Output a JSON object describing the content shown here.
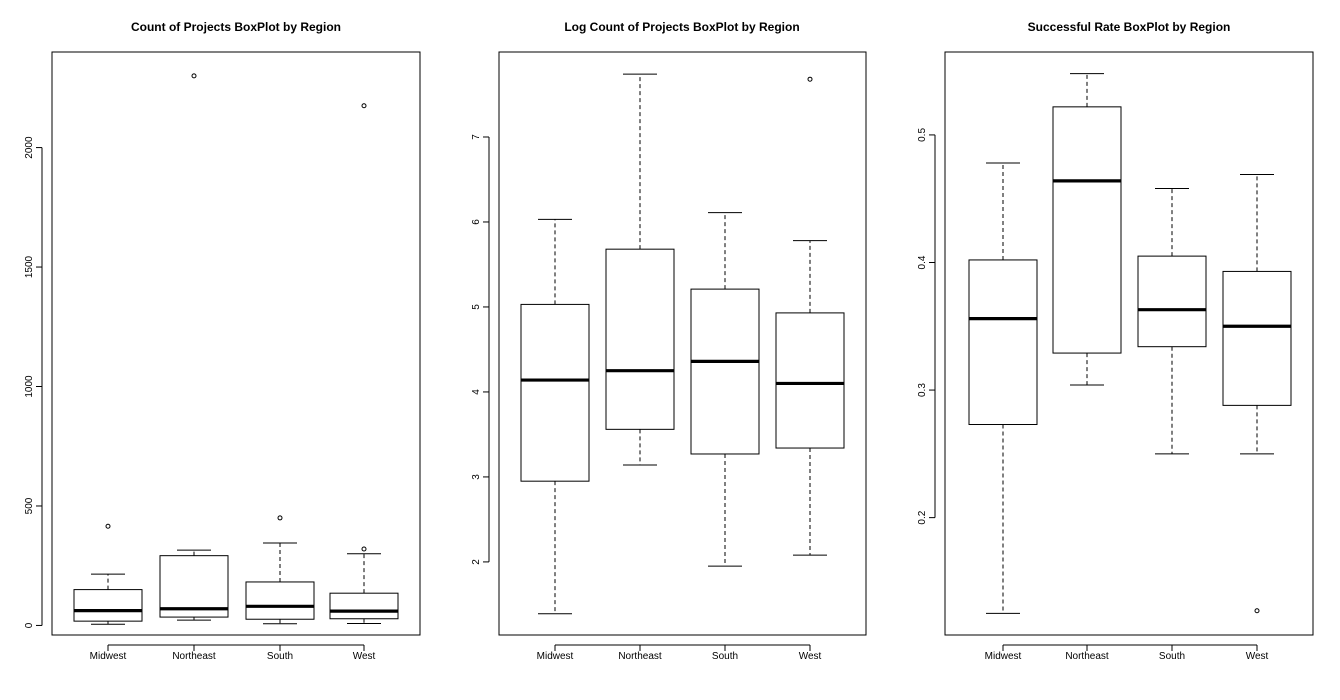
{
  "chart_data": [
    {
      "type": "boxplot",
      "title": "Count of Projects BoxPlot by Region",
      "xlabel": "",
      "ylabel": "",
      "categories": [
        "Midwest",
        "Northeast",
        "South",
        "West"
      ],
      "ylim": [
        -40,
        2400
      ],
      "yticks": [
        0,
        500,
        1000,
        1500,
        2000
      ],
      "ytick_labels": [
        "0",
        "500",
        "1000",
        "1500",
        "2000"
      ],
      "boxes": [
        {
          "whisker_low": 5,
          "q1": 18,
          "median": 62,
          "q3": 150,
          "whisker_high": 215,
          "outliers": [
            415
          ]
        },
        {
          "whisker_low": 22,
          "q1": 35,
          "median": 70,
          "q3": 292,
          "whisker_high": 315,
          "outliers": [
            2300
          ]
        },
        {
          "whisker_low": 7,
          "q1": 26,
          "median": 80,
          "q3": 182,
          "whisker_high": 345,
          "outliers": [
            450
          ]
        },
        {
          "whisker_low": 8,
          "q1": 28,
          "median": 60,
          "q3": 135,
          "whisker_high": 300,
          "outliers": [
            320,
            2175
          ]
        }
      ]
    },
    {
      "type": "boxplot",
      "title": "Log Count of Projects BoxPlot by Region",
      "xlabel": "",
      "ylabel": "",
      "categories": [
        "Midwest",
        "Northeast",
        "South",
        "West"
      ],
      "ylim": [
        1.14,
        8.0
      ],
      "yticks": [
        2,
        3,
        4,
        5,
        6,
        7
      ],
      "ytick_labels": [
        "2",
        "3",
        "4",
        "5",
        "6",
        "7"
      ],
      "boxes": [
        {
          "whisker_low": 1.39,
          "q1": 2.95,
          "median": 4.14,
          "q3": 5.03,
          "whisker_high": 6.03,
          "outliers": []
        },
        {
          "whisker_low": 3.14,
          "q1": 3.56,
          "median": 4.25,
          "q3": 5.68,
          "whisker_high": 7.74,
          "outliers": []
        },
        {
          "whisker_low": 1.95,
          "q1": 3.27,
          "median": 4.36,
          "q3": 5.21,
          "whisker_high": 6.11,
          "outliers": []
        },
        {
          "whisker_low": 2.08,
          "q1": 3.34,
          "median": 4.1,
          "q3": 4.93,
          "whisker_high": 5.78,
          "outliers": [
            7.68
          ]
        }
      ]
    },
    {
      "type": "boxplot",
      "title": "Successful Rate BoxPlot by Region",
      "xlabel": "",
      "ylabel": "",
      "categories": [
        "Midwest",
        "Northeast",
        "South",
        "West"
      ],
      "ylim": [
        0.108,
        0.565
      ],
      "yticks": [
        0.2,
        0.3,
        0.4,
        0.5
      ],
      "ytick_labels": [
        "0.2",
        "0.3",
        "0.4",
        "0.5"
      ],
      "boxes": [
        {
          "whisker_low": 0.125,
          "q1": 0.273,
          "median": 0.356,
          "q3": 0.402,
          "whisker_high": 0.478,
          "outliers": []
        },
        {
          "whisker_low": 0.304,
          "q1": 0.329,
          "median": 0.464,
          "q3": 0.522,
          "whisker_high": 0.548,
          "outliers": []
        },
        {
          "whisker_low": 0.25,
          "q1": 0.334,
          "median": 0.363,
          "q3": 0.405,
          "whisker_high": 0.458,
          "outliers": []
        },
        {
          "whisker_low": 0.25,
          "q1": 0.288,
          "median": 0.35,
          "q3": 0.393,
          "whisker_high": 0.469,
          "outliers": [
            0.127
          ]
        }
      ]
    }
  ]
}
